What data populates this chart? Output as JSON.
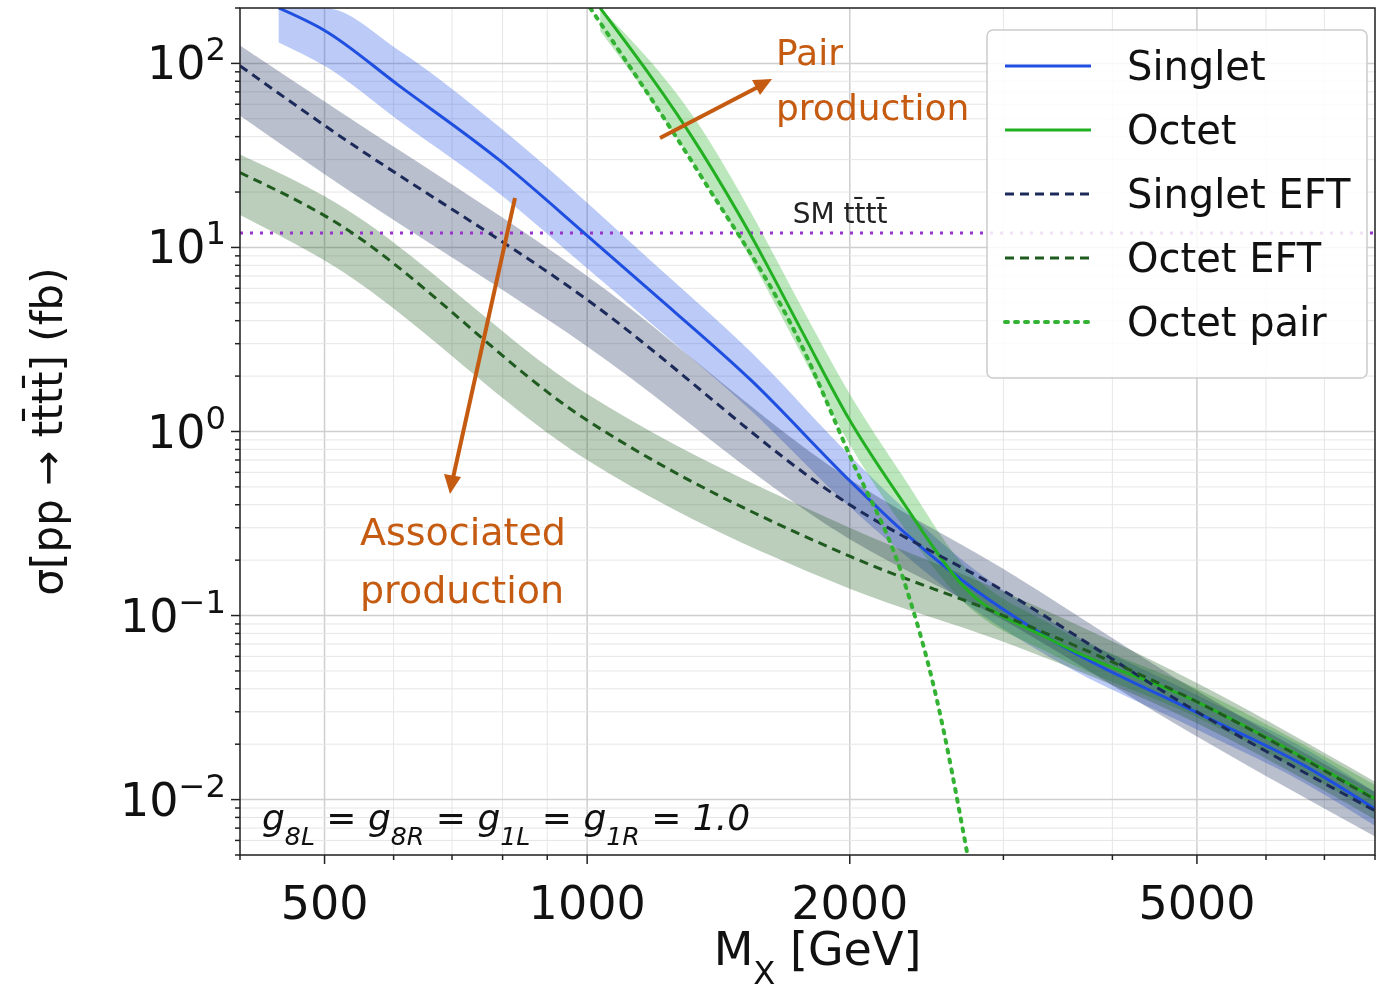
{
  "chart_data": {
    "type": "line",
    "xlabel": "M$_{X}$  [GeV]",
    "ylabel": "σ[pp → tt̄tt̄] (fb)",
    "log": "xy",
    "grid": true,
    "legend": "top right",
    "xlim": [
      400,
      8000
    ],
    "ylim": [
      0.005,
      200
    ],
    "xticks": [
      {
        "value": 400,
        "label": null
      },
      {
        "value": 500,
        "label": "500"
      },
      {
        "value": 600,
        "label": null
      },
      {
        "value": 700,
        "label": null
      },
      {
        "value": 800,
        "label": null
      },
      {
        "value": 900,
        "label": null
      },
      {
        "value": 1000,
        "label": "1000"
      },
      {
        "value": 2000,
        "label": "2000"
      },
      {
        "value": 3000,
        "label": null
      },
      {
        "value": 4000,
        "label": null
      },
      {
        "value": 5000,
        "label": "5000"
      },
      {
        "value": 6000,
        "label": null
      },
      {
        "value": 7000,
        "label": null
      },
      {
        "value": 8000,
        "label": null
      }
    ],
    "yticks": [
      {
        "value": 0.005,
        "label": null
      },
      {
        "value": 0.006,
        "label": null
      },
      {
        "value": 0.007,
        "label": null
      },
      {
        "value": 0.008,
        "label": null
      },
      {
        "value": 0.009,
        "label": null
      },
      {
        "value": 0.01,
        "label": "10$^{−2}$"
      },
      {
        "value": 0.02,
        "label": null
      },
      {
        "value": 0.03,
        "label": null
      },
      {
        "value": 0.04,
        "label": null
      },
      {
        "value": 0.05,
        "label": null
      },
      {
        "value": 0.06,
        "label": null
      },
      {
        "value": 0.07,
        "label": null
      },
      {
        "value": 0.08,
        "label": null
      },
      {
        "value": 0.09,
        "label": null
      },
      {
        "value": 0.1,
        "label": "10$^{−1}$"
      },
      {
        "value": 0.2,
        "label": null
      },
      {
        "value": 0.3,
        "label": null
      },
      {
        "value": 0.4,
        "label": null
      },
      {
        "value": 0.5,
        "label": null
      },
      {
        "value": 0.6,
        "label": null
      },
      {
        "value": 0.7,
        "label": null
      },
      {
        "value": 0.8,
        "label": null
      },
      {
        "value": 0.9,
        "label": null
      },
      {
        "value": 1,
        "label": "10$^{0}$"
      },
      {
        "value": 2,
        "label": null
      },
      {
        "value": 3,
        "label": null
      },
      {
        "value": 4,
        "label": null
      },
      {
        "value": 5,
        "label": null
      },
      {
        "value": 6,
        "label": null
      },
      {
        "value": 7,
        "label": null
      },
      {
        "value": 8,
        "label": null
      },
      {
        "value": 9,
        "label": null
      },
      {
        "value": 10,
        "label": "10$^{1}$"
      },
      {
        "value": 20,
        "label": null
      },
      {
        "value": 30,
        "label": null
      },
      {
        "value": 40,
        "label": null
      },
      {
        "value": 50,
        "label": null
      },
      {
        "value": 60,
        "label": null
      },
      {
        "value": 70,
        "label": null
      },
      {
        "value": 80,
        "label": null
      },
      {
        "value": 90,
        "label": null
      },
      {
        "value": 100,
        "label": "10$^{2}$"
      },
      {
        "value": 200,
        "label": null
      }
    ],
    "series": [
      {
        "name": "Singlet",
        "color": "#1f4fe0",
        "line_style": "solid",
        "x": [
          443,
          500,
          608,
          794,
          1000,
          1182,
          1541,
          2000,
          2296,
          2693,
          3420,
          5000,
          6640,
          8000
        ],
        "values": [
          200,
          151,
          76,
          29.7,
          11.6,
          5.8,
          1.9,
          0.54,
          0.29,
          0.155,
          0.073,
          0.0297,
          0.0153,
          0.0089
        ],
        "upper": [
          200,
          200,
          118,
          45,
          17.5,
          8.5,
          2.7,
          0.74,
          0.39,
          0.2,
          0.092,
          0.037,
          0.019,
          0.011
        ],
        "lower": [
          130,
          97,
          49,
          19.5,
          7.7,
          3.9,
          1.3,
          0.39,
          0.22,
          0.12,
          0.058,
          0.024,
          0.0123,
          0.0072
        ]
      },
      {
        "name": "Octet",
        "color": "#22b022",
        "line_style": "solid",
        "x": [
          1035,
          1349,
          1541,
          1763,
          2000,
          2296,
          2693,
          3420,
          5000,
          8000
        ],
        "values": [
          200,
          33.7,
          11.6,
          3.5,
          1.15,
          0.42,
          0.146,
          0.073,
          0.034,
          0.0101
        ],
        "upper": [
          200,
          45,
          15.5,
          4.7,
          1.6,
          0.58,
          0.19,
          0.088,
          0.04,
          0.012
        ],
        "lower": [
          150,
          25,
          8.6,
          2.6,
          0.85,
          0.31,
          0.12,
          0.061,
          0.028,
          0.0085
        ]
      },
      {
        "name": "Singlet EFT",
        "color": "#1c2a5a",
        "line_style": "dashed",
        "x": [
          400,
          500,
          1000,
          2000,
          2995,
          5000,
          8000
        ],
        "values": [
          97,
          46,
          5.2,
          0.4,
          0.137,
          0.03,
          0.0087
        ],
        "upper": [
          125,
          62,
          7,
          0.55,
          0.18,
          0.039,
          0.011
        ],
        "lower": [
          52,
          25,
          2.9,
          0.26,
          0.095,
          0.022,
          0.0063
        ]
      },
      {
        "name": "Octet EFT",
        "color": "#1f5a1f",
        "line_style": "dashed",
        "x": [
          400,
          500,
          1000,
          2000,
          3000,
          5000,
          8000
        ],
        "values": [
          25.5,
          14.9,
          1.15,
          0.21,
          0.1,
          0.034,
          0.01
        ],
        "upper": [
          32,
          19,
          1.6,
          0.3,
          0.135,
          0.043,
          0.0125
        ],
        "lower": [
          15,
          8.5,
          0.7,
          0.14,
          0.072,
          0.026,
          0.0078
        ]
      },
      {
        "name": "Octet pair",
        "color": "#33b233",
        "line_style": "dotted",
        "x": [
          1008,
          1349,
          1763,
          2000,
          2296,
          2518,
          2729
        ],
        "values": [
          200,
          24.6,
          2.9,
          0.74,
          0.166,
          0.0346,
          0.005
        ]
      }
    ],
    "ref_lines": [
      {
        "axis": "y",
        "value": 12,
        "label": "SM tt̄tt̄",
        "color": "#9933cc",
        "line_style": "dotted"
      }
    ],
    "annotations": [
      "Pair production",
      "Associated production",
      "g$_{8L}$ = g$_{8R}$ = g$_{1L}$ = g$_{1R}$ = 1.0"
    ]
  }
}
